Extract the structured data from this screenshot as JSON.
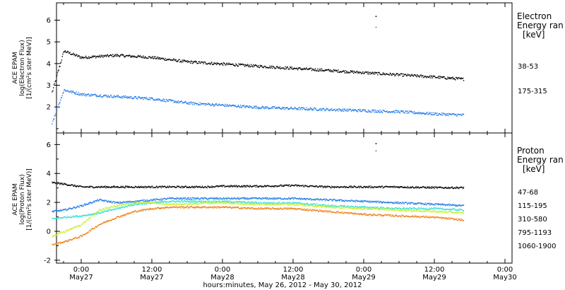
{
  "chart_data": [
    {
      "type": "scatter",
      "panel": "electron",
      "ylabel": [
        "ACE EPAM",
        "log(Electron Flux)",
        "[1/(cm²s ster MeV)]"
      ],
      "ylim": [
        0.8,
        6.8
      ],
      "yticks": [
        2,
        3,
        4,
        5,
        6
      ],
      "legend_title": [
        "Electron",
        "Energy ran",
        "[keV]"
      ],
      "x": [
        "May26 19:00",
        "May26 21:00",
        "May27 00:00",
        "May27 03:00",
        "May27 06:00",
        "May27 09:00",
        "May27 12:00",
        "May27 15:00",
        "May27 18:00",
        "May27 21:00",
        "May28 00:00",
        "May28 06:00",
        "May28 12:00",
        "May28 18:00",
        "May29 00:00",
        "May29 06:00",
        "May29 12:00",
        "May29 17:00"
      ],
      "series": [
        {
          "name": "38-53",
          "color": "#000000",
          "values": [
            2.7,
            4.6,
            4.3,
            4.35,
            4.4,
            4.35,
            4.3,
            4.2,
            4.1,
            4.05,
            4.0,
            3.9,
            3.8,
            3.7,
            3.6,
            3.5,
            3.4,
            3.3
          ]
        },
        {
          "name": "175-315",
          "color": "#1e78e6",
          "values": [
            1.3,
            2.8,
            2.6,
            2.55,
            2.5,
            2.45,
            2.4,
            2.3,
            2.2,
            2.15,
            2.1,
            2.0,
            1.95,
            1.9,
            1.85,
            1.8,
            1.7,
            1.65
          ]
        }
      ],
      "outliers": [
        {
          "series": "38-53",
          "x": "May29 02:00",
          "y": 6.2
        },
        {
          "series": "175-315",
          "x": "May29 02:00",
          "y": 5.7
        }
      ]
    },
    {
      "type": "scatter",
      "panel": "proton",
      "ylabel": [
        "ACE EPAM",
        "log(Proton Flux)",
        "[1/(cm²s ster MeV)]"
      ],
      "ylim": [
        -2.2,
        6.8
      ],
      "yticks": [
        -2,
        0,
        2,
        4,
        6
      ],
      "legend_title": [
        "Proton",
        "Energy ran",
        "[keV]"
      ],
      "x": [
        "May26 19:00",
        "May26 21:00",
        "May27 00:00",
        "May27 03:00",
        "May27 06:00",
        "May27 09:00",
        "May27 12:00",
        "May27 15:00",
        "May27 18:00",
        "May27 21:00",
        "May28 00:00",
        "May28 06:00",
        "May28 12:00",
        "May28 18:00",
        "May29 00:00",
        "May29 06:00",
        "May29 12:00",
        "May29 17:00"
      ],
      "series": [
        {
          "name": "47-68",
          "color": "#000000",
          "values": [
            3.4,
            3.3,
            3.1,
            3.1,
            3.1,
            3.1,
            3.1,
            3.1,
            3.1,
            3.1,
            3.15,
            3.15,
            3.2,
            3.1,
            3.1,
            3.1,
            3.05,
            3.05
          ]
        },
        {
          "name": "115-195",
          "color": "#1e78e6",
          "values": [
            1.4,
            1.5,
            1.8,
            2.2,
            2.0,
            2.1,
            2.2,
            2.3,
            2.3,
            2.3,
            2.3,
            2.3,
            2.3,
            2.2,
            2.1,
            2.0,
            1.9,
            1.8
          ]
        },
        {
          "name": "310-580",
          "color": "#2ee0d8",
          "values": [
            0.9,
            1.0,
            1.1,
            1.3,
            1.6,
            1.9,
            2.0,
            2.1,
            2.1,
            2.1,
            2.1,
            2.0,
            2.0,
            1.8,
            1.7,
            1.6,
            1.6,
            1.5
          ]
        },
        {
          "name": "795-1193",
          "color": "#c8f02a",
          "values": [
            -0.3,
            0.0,
            0.5,
            1.5,
            1.8,
            2.0,
            2.0,
            1.9,
            1.9,
            2.0,
            2.0,
            1.9,
            1.9,
            1.7,
            1.6,
            1.5,
            1.4,
            1.3
          ]
        },
        {
          "name": "1060-1900",
          "color": "#f07e12",
          "values": [
            -0.9,
            -0.7,
            -0.3,
            0.5,
            1.0,
            1.4,
            1.6,
            1.7,
            1.7,
            1.7,
            1.7,
            1.6,
            1.6,
            1.4,
            1.2,
            1.1,
            1.0,
            0.8
          ]
        }
      ],
      "outliers": [
        {
          "series": "47-68",
          "x": "May29 02:00",
          "y": 6.1
        },
        {
          "series": "115-195",
          "x": "May29 02:00",
          "y": 5.6
        }
      ]
    }
  ],
  "x_axis": {
    "ticks": [
      {
        "time": "0:00",
        "day": "May27"
      },
      {
        "time": "12:00",
        "day": "May27"
      },
      {
        "time": "0:00",
        "day": "May28"
      },
      {
        "time": "12:00",
        "day": "May28"
      },
      {
        "time": "0:00",
        "day": "May29"
      },
      {
        "time": "12:00",
        "day": "May29"
      },
      {
        "time": "0:00",
        "day": "May30"
      }
    ],
    "label": "hours:minutes, May 26, 2012 - May 30, 2012"
  }
}
